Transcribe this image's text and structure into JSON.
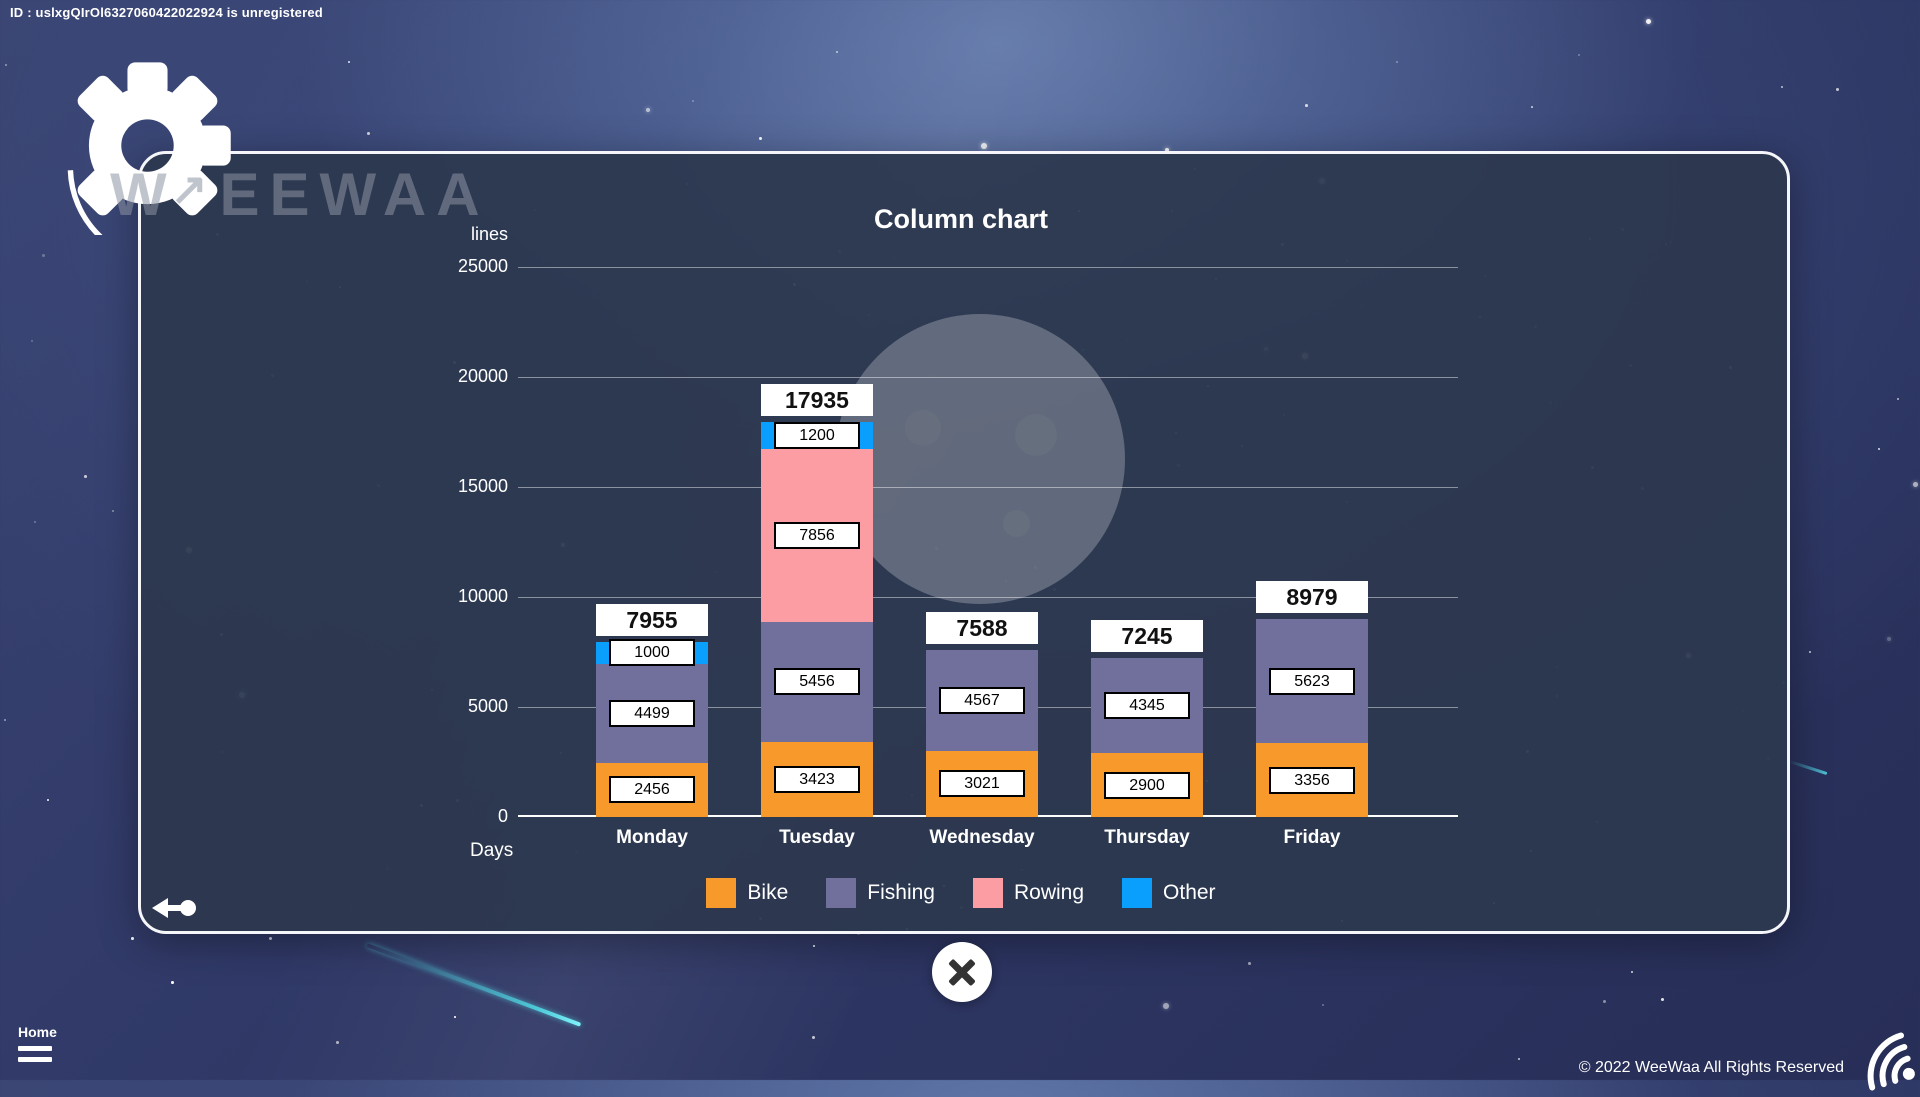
{
  "banner": {
    "id_text": "ID : uslxgQIrOl6327060422022924 is unregistered"
  },
  "logo": {
    "watermark_w": "W",
    "watermark_name": "EEWAA"
  },
  "chart_data": {
    "type": "bar",
    "stacked": true,
    "title": "Column chart",
    "xlabel": "Days",
    "ylabel": "lines",
    "categories": [
      "Monday",
      "Tuesday",
      "Wednesday",
      "Thursday",
      "Friday"
    ],
    "series": [
      {
        "name": "Bike",
        "color": "#F8992C",
        "values": [
          2456,
          3423,
          3021,
          2900,
          3356
        ]
      },
      {
        "name": "Fishing",
        "color": "#716F9C",
        "values": [
          4499,
          5456,
          4567,
          4345,
          5623
        ]
      },
      {
        "name": "Rowing",
        "color": "#FB9DA3",
        "values": [
          0,
          7856,
          0,
          0,
          0
        ]
      },
      {
        "name": "Other",
        "color": "#0A9EFD",
        "values": [
          1000,
          1200,
          0,
          0,
          0
        ]
      }
    ],
    "totals": [
      7955,
      17935,
      7588,
      7245,
      8979
    ],
    "ylim": [
      0,
      25000
    ],
    "yticks": [
      0,
      5000,
      10000,
      15000,
      20000,
      25000
    ],
    "grid": true,
    "legend_position": "bottom"
  },
  "footer_nav": {
    "home_label": "Home"
  },
  "footer": {
    "copyright": "© 2022 WeeWaa All Rights Reserved"
  }
}
